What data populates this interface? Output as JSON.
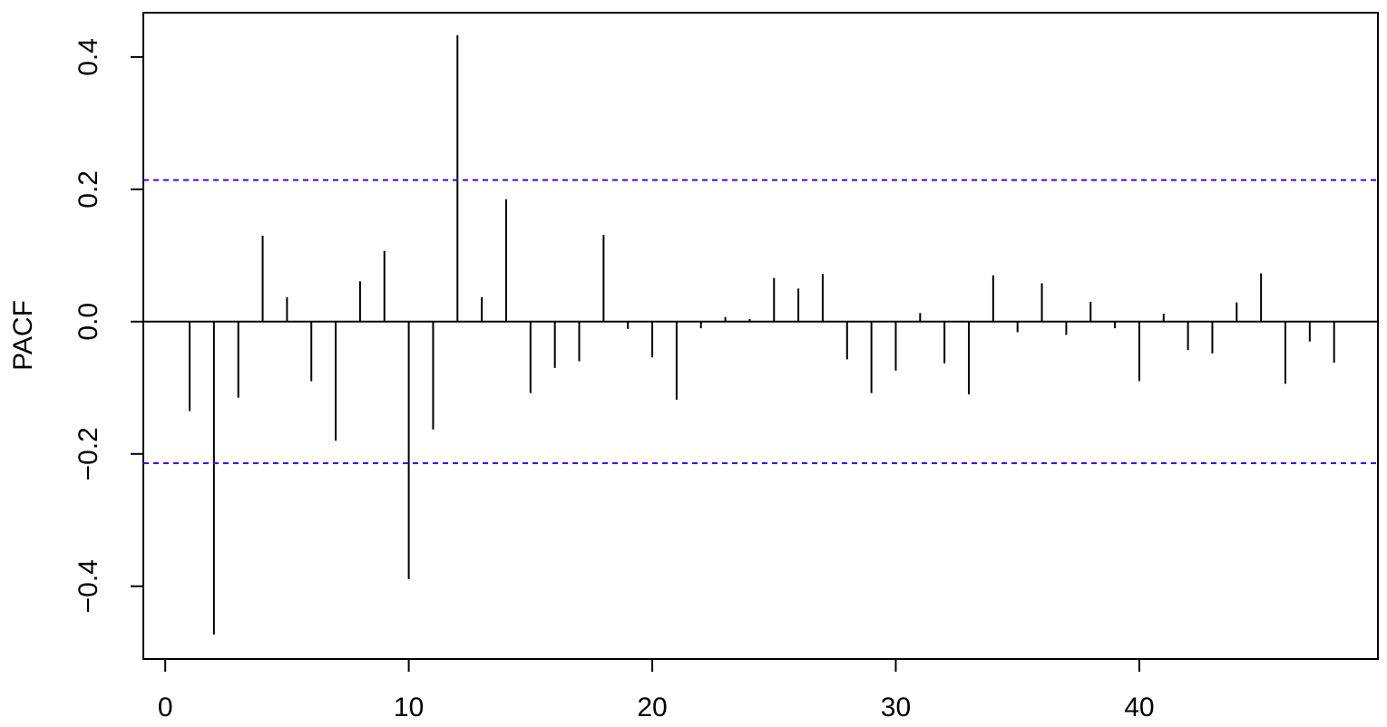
{
  "chart_data": {
    "type": "bar",
    "ylabel": "PACF",
    "xlabel": "",
    "title": "",
    "xlim": [
      -0.9,
      49.8
    ],
    "ylim": [
      -0.51,
      0.467
    ],
    "x_ticks": [
      0,
      10,
      20,
      30,
      40
    ],
    "y_ticks": [
      -0.4,
      -0.2,
      0.0,
      0.2,
      0.4
    ],
    "y_tick_labels": [
      "−0.4",
      "−0.2",
      "0.0",
      "0.2",
      "0.4"
    ],
    "confidence_bound": 0.214,
    "confidence_color": "#3B00FF",
    "bar_color": "#000000",
    "grid": false,
    "lags": [
      1,
      2,
      3,
      4,
      5,
      6,
      7,
      8,
      9,
      10,
      11,
      12,
      13,
      14,
      15,
      16,
      17,
      18,
      19,
      20,
      21,
      22,
      23,
      24,
      25,
      26,
      27,
      28,
      29,
      30,
      31,
      32,
      33,
      34,
      35,
      36,
      37,
      38,
      39,
      40,
      41,
      42,
      43,
      44,
      45,
      46,
      47,
      48
    ],
    "values": [
      -0.135,
      -0.473,
      -0.115,
      0.13,
      0.037,
      -0.09,
      -0.18,
      0.061,
      0.107,
      -0.389,
      -0.163,
      0.433,
      0.037,
      0.185,
      -0.108,
      -0.07,
      -0.06,
      0.131,
      -0.011,
      -0.054,
      -0.118,
      -0.01,
      0.007,
      0.004,
      0.066,
      0.05,
      0.072,
      -0.057,
      -0.108,
      -0.074,
      0.013,
      -0.063,
      -0.11,
      0.07,
      -0.016,
      0.058,
      -0.02,
      0.03,
      -0.01,
      -0.09,
      0.012,
      -0.043,
      -0.048,
      0.029,
      0.073,
      -0.094,
      -0.03,
      -0.062
    ]
  }
}
